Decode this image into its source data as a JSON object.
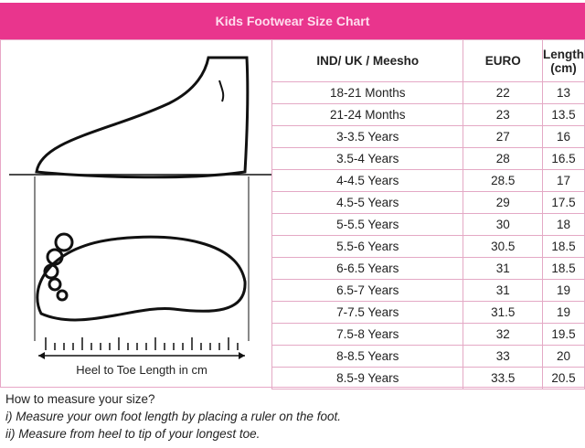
{
  "title": "Kids Footwear Size Chart",
  "illustration_label": "Heel to Toe Length in cm",
  "table": {
    "headers": [
      "IND/ UK / Meesho",
      "EURO",
      "Length (cm)"
    ],
    "rows": [
      [
        "18-21 Months",
        "22",
        "13"
      ],
      [
        "21-24 Months",
        "23",
        "13.5"
      ],
      [
        "3-3.5 Years",
        "27",
        "16"
      ],
      [
        "3.5-4 Years",
        "28",
        "16.5"
      ],
      [
        "4-4.5 Years",
        "28.5",
        "17"
      ],
      [
        "4.5-5 Years",
        "29",
        "17.5"
      ],
      [
        "5-5.5 Years",
        "30",
        "18"
      ],
      [
        "5.5-6 Years",
        "30.5",
        "18.5"
      ],
      [
        "6-6.5 Years",
        "31",
        "18.5"
      ],
      [
        "6.5-7 Years",
        "31",
        "19"
      ],
      [
        "7-7.5 Years",
        "31.5",
        "19"
      ],
      [
        "7.5-8 Years",
        "32",
        "19.5"
      ],
      [
        "8-8.5 Years",
        "33",
        "20"
      ],
      [
        "8.5-9 Years",
        "33.5",
        "20.5"
      ]
    ]
  },
  "notes": {
    "heading": "How to measure your size?",
    "step1": "i) Measure your own foot length by placing a ruler on the foot.",
    "step2": "ii) Measure from heel to tip of your longest toe."
  },
  "colors": {
    "accent": "#e9358d",
    "border": "#e4a9c5"
  }
}
